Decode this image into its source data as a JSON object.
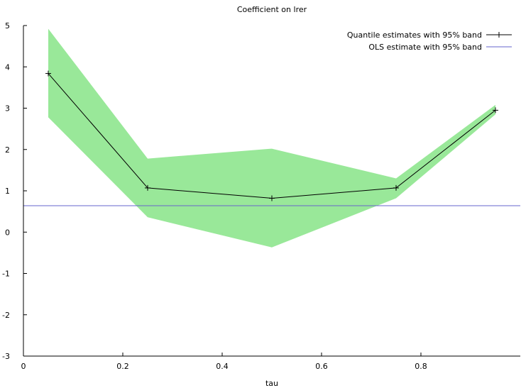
{
  "chart_data": {
    "type": "line",
    "title": "Coefficient on lrer",
    "xlabel": "tau",
    "ylabel": "",
    "xlim": [
      0,
      1.0
    ],
    "ylim": [
      -3,
      5
    ],
    "x_ticks": [
      "0",
      "0.2",
      "0.4",
      "0.6",
      "0.8"
    ],
    "y_ticks": [
      "-3",
      "-2",
      "-1",
      "0",
      "1",
      "2",
      "3",
      "4",
      "5"
    ],
    "x": [
      0.05,
      0.25,
      0.5,
      0.75,
      0.95
    ],
    "series": [
      {
        "name": "Quantile estimates with 95% band",
        "values": [
          3.84,
          1.07,
          0.82,
          1.07,
          2.95
        ],
        "band_lower": [
          2.78,
          0.36,
          -0.37,
          0.82,
          2.85
        ],
        "band_upper": [
          4.92,
          1.78,
          2.02,
          1.3,
          3.08
        ],
        "color": "#000000",
        "band_color": "#99e899"
      },
      {
        "name": "OLS estimate with 95% band",
        "value": 0.64,
        "color": "#6666cc"
      }
    ],
    "legend_position": "top-right",
    "grid": false
  }
}
